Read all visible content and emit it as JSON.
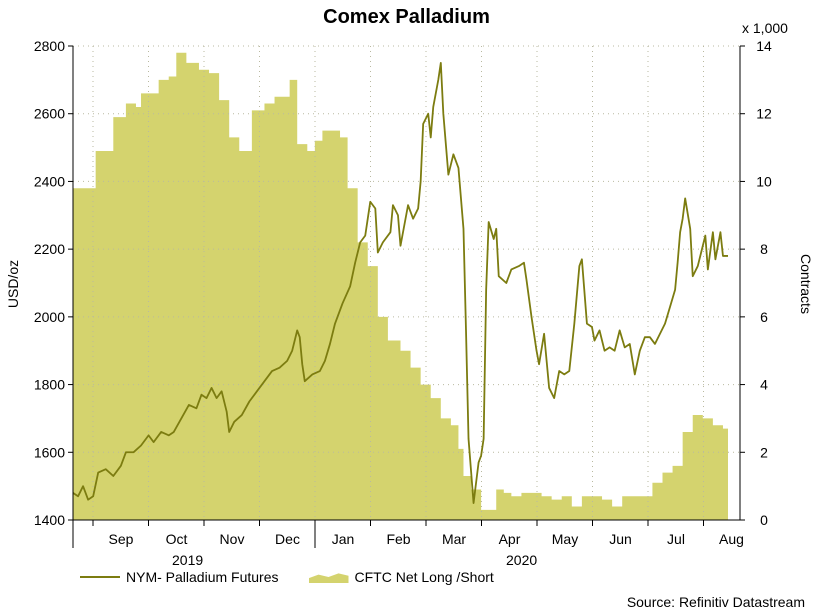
{
  "chart_data": {
    "type": "line+area",
    "title": "Comex Palladium",
    "ylabel_left": "USD/oz",
    "ylabel_right": "Contracts",
    "right_multiplier": "x 1,000",
    "ylim_left": [
      1400,
      2800
    ],
    "yticks_left": [
      "1400",
      "1600",
      "1800",
      "2000",
      "2200",
      "2400",
      "2600",
      "2800"
    ],
    "ylim_right": [
      0,
      14
    ],
    "yticks_right": [
      "0",
      "2",
      "4",
      "6",
      "8",
      "10",
      "12",
      "14"
    ],
    "months": [
      "Sep",
      "Oct",
      "Nov",
      "Dec",
      "Jan",
      "Feb",
      "Mar",
      "Apr",
      "May",
      "Jun",
      "Jul",
      "Aug"
    ],
    "years": [
      "2019",
      "2020"
    ],
    "x_range_months": [
      0,
      12.4
    ],
    "series": [
      {
        "name": "NYM- Palladium Futures",
        "kind": "line",
        "axis": "left",
        "color": "#7c7c10",
        "points": [
          [
            0.0,
            1480
          ],
          [
            0.1,
            1470
          ],
          [
            0.2,
            1500
          ],
          [
            0.3,
            1460
          ],
          [
            0.4,
            1470
          ],
          [
            0.5,
            1540
          ],
          [
            0.65,
            1550
          ],
          [
            0.8,
            1530
          ],
          [
            0.95,
            1560
          ],
          [
            1.05,
            1600
          ],
          [
            1.2,
            1600
          ],
          [
            1.35,
            1620
          ],
          [
            1.5,
            1650
          ],
          [
            1.6,
            1630
          ],
          [
            1.75,
            1660
          ],
          [
            1.9,
            1650
          ],
          [
            2.0,
            1660
          ],
          [
            2.15,
            1700
          ],
          [
            2.3,
            1740
          ],
          [
            2.45,
            1730
          ],
          [
            2.55,
            1770
          ],
          [
            2.65,
            1760
          ],
          [
            2.75,
            1790
          ],
          [
            2.85,
            1760
          ],
          [
            2.95,
            1780
          ],
          [
            3.05,
            1720
          ],
          [
            3.1,
            1660
          ],
          [
            3.2,
            1690
          ],
          [
            3.35,
            1710
          ],
          [
            3.5,
            1750
          ],
          [
            3.65,
            1780
          ],
          [
            3.8,
            1810
          ],
          [
            3.95,
            1840
          ],
          [
            4.1,
            1850
          ],
          [
            4.25,
            1870
          ],
          [
            4.35,
            1900
          ],
          [
            4.45,
            1960
          ],
          [
            4.5,
            1940
          ],
          [
            4.55,
            1860
          ],
          [
            4.6,
            1810
          ],
          [
            4.75,
            1830
          ],
          [
            4.9,
            1840
          ],
          [
            5.0,
            1870
          ],
          [
            5.1,
            1920
          ],
          [
            5.2,
            1980
          ],
          [
            5.35,
            2040
          ],
          [
            5.5,
            2090
          ],
          [
            5.6,
            2160
          ],
          [
            5.7,
            2220
          ],
          [
            5.8,
            2240
          ],
          [
            5.9,
            2340
          ],
          [
            6.0,
            2320
          ],
          [
            6.05,
            2190
          ],
          [
            6.15,
            2220
          ],
          [
            6.3,
            2250
          ],
          [
            6.35,
            2330
          ],
          [
            6.45,
            2300
          ],
          [
            6.5,
            2210
          ],
          [
            6.65,
            2330
          ],
          [
            6.75,
            2290
          ],
          [
            6.85,
            2320
          ],
          [
            6.9,
            2400
          ],
          [
            6.95,
            2570
          ],
          [
            7.05,
            2600
          ],
          [
            7.1,
            2530
          ],
          [
            7.15,
            2620
          ],
          [
            7.25,
            2700
          ],
          [
            7.3,
            2750
          ],
          [
            7.35,
            2600
          ],
          [
            7.45,
            2420
          ],
          [
            7.55,
            2480
          ],
          [
            7.65,
            2440
          ],
          [
            7.75,
            2260
          ],
          [
            7.8,
            1960
          ],
          [
            7.85,
            1640
          ],
          [
            7.95,
            1450
          ],
          [
            8.05,
            1570
          ],
          [
            8.1,
            1590
          ],
          [
            8.15,
            1640
          ],
          [
            8.2,
            2080
          ],
          [
            8.25,
            2280
          ],
          [
            8.35,
            2230
          ],
          [
            8.4,
            2260
          ],
          [
            8.45,
            2120
          ],
          [
            8.6,
            2100
          ],
          [
            8.7,
            2140
          ],
          [
            8.85,
            2150
          ],
          [
            8.95,
            2160
          ],
          [
            9.0,
            2110
          ],
          [
            9.1,
            2000
          ],
          [
            9.2,
            1900
          ],
          [
            9.25,
            1860
          ],
          [
            9.35,
            1950
          ],
          [
            9.45,
            1790
          ],
          [
            9.55,
            1760
          ],
          [
            9.65,
            1840
          ],
          [
            9.75,
            1830
          ],
          [
            9.85,
            1840
          ],
          [
            9.95,
            1980
          ],
          [
            10.05,
            2150
          ],
          [
            10.1,
            2170
          ],
          [
            10.2,
            1980
          ],
          [
            10.3,
            1970
          ],
          [
            10.35,
            1930
          ],
          [
            10.45,
            1960
          ],
          [
            10.55,
            1900
          ],
          [
            10.65,
            1910
          ],
          [
            10.75,
            1900
          ],
          [
            10.85,
            1960
          ],
          [
            10.95,
            1910
          ],
          [
            11.05,
            1920
          ],
          [
            11.15,
            1830
          ],
          [
            11.25,
            1900
          ],
          [
            11.35,
            1940
          ],
          [
            11.45,
            1940
          ],
          [
            11.55,
            1920
          ],
          [
            11.65,
            1950
          ],
          [
            11.75,
            1980
          ],
          [
            11.85,
            2030
          ],
          [
            11.95,
            2080
          ],
          [
            12.0,
            2160
          ],
          [
            12.05,
            2250
          ],
          [
            12.1,
            2290
          ],
          [
            12.15,
            2350
          ],
          [
            12.25,
            2260
          ],
          [
            12.3,
            2120
          ],
          [
            12.4,
            2150
          ],
          [
            12.5,
            2210
          ],
          [
            12.55,
            2240
          ],
          [
            12.6,
            2140
          ],
          [
            12.7,
            2250
          ],
          [
            12.75,
            2170
          ],
          [
            12.85,
            2250
          ],
          [
            12.9,
            2180
          ],
          [
            13.0,
            2180
          ]
        ]
      },
      {
        "name": "CFTC Net Long /Short",
        "kind": "area",
        "axis": "right",
        "color": "#d4d36e",
        "points": [
          [
            0.0,
            9.8
          ],
          [
            0.4,
            9.8
          ],
          [
            0.45,
            10.9
          ],
          [
            0.65,
            10.9
          ],
          [
            0.8,
            11.9
          ],
          [
            1.05,
            12.3
          ],
          [
            1.25,
            12.2
          ],
          [
            1.35,
            12.6
          ],
          [
            1.55,
            12.6
          ],
          [
            1.7,
            13.0
          ],
          [
            1.9,
            13.1
          ],
          [
            2.05,
            13.8
          ],
          [
            2.25,
            13.5
          ],
          [
            2.5,
            13.3
          ],
          [
            2.7,
            13.2
          ],
          [
            2.9,
            12.4
          ],
          [
            3.1,
            11.3
          ],
          [
            3.3,
            10.9
          ],
          [
            3.55,
            12.1
          ],
          [
            3.8,
            12.3
          ],
          [
            4.0,
            12.5
          ],
          [
            4.3,
            13.0
          ],
          [
            4.45,
            11.1
          ],
          [
            4.65,
            10.9
          ],
          [
            4.8,
            11.2
          ],
          [
            4.95,
            11.5
          ],
          [
            5.1,
            11.5
          ],
          [
            5.3,
            11.3
          ],
          [
            5.45,
            9.8
          ],
          [
            5.65,
            8.2
          ],
          [
            5.85,
            7.5
          ],
          [
            6.05,
            6.0
          ],
          [
            6.25,
            5.3
          ],
          [
            6.5,
            5.0
          ],
          [
            6.7,
            4.5
          ],
          [
            6.9,
            4.0
          ],
          [
            7.1,
            3.6
          ],
          [
            7.3,
            3.0
          ],
          [
            7.5,
            2.8
          ],
          [
            7.65,
            2.1
          ],
          [
            7.75,
            1.3
          ],
          [
            7.9,
            0.9
          ],
          [
            8.1,
            0.3
          ],
          [
            8.3,
            0.3
          ],
          [
            8.4,
            0.9
          ],
          [
            8.55,
            0.8
          ],
          [
            8.7,
            0.7
          ],
          [
            8.9,
            0.8
          ],
          [
            9.1,
            0.8
          ],
          [
            9.3,
            0.7
          ],
          [
            9.5,
            0.6
          ],
          [
            9.7,
            0.7
          ],
          [
            9.9,
            0.4
          ],
          [
            10.1,
            0.7
          ],
          [
            10.3,
            0.7
          ],
          [
            10.5,
            0.6
          ],
          [
            10.7,
            0.4
          ],
          [
            10.9,
            0.7
          ],
          [
            11.1,
            0.7
          ],
          [
            11.3,
            0.7
          ],
          [
            11.5,
            1.1
          ],
          [
            11.7,
            1.4
          ],
          [
            11.9,
            1.6
          ],
          [
            12.1,
            2.6
          ],
          [
            12.3,
            3.1
          ],
          [
            12.5,
            3.0
          ],
          [
            12.7,
            2.8
          ],
          [
            12.9,
            2.7
          ],
          [
            13.0,
            2.7
          ]
        ]
      }
    ],
    "source": "Source: Refinitiv Datastream"
  },
  "legend": {
    "line_label": "NYM- Palladium Futures",
    "area_label": "CFTC Net Long /Short"
  }
}
